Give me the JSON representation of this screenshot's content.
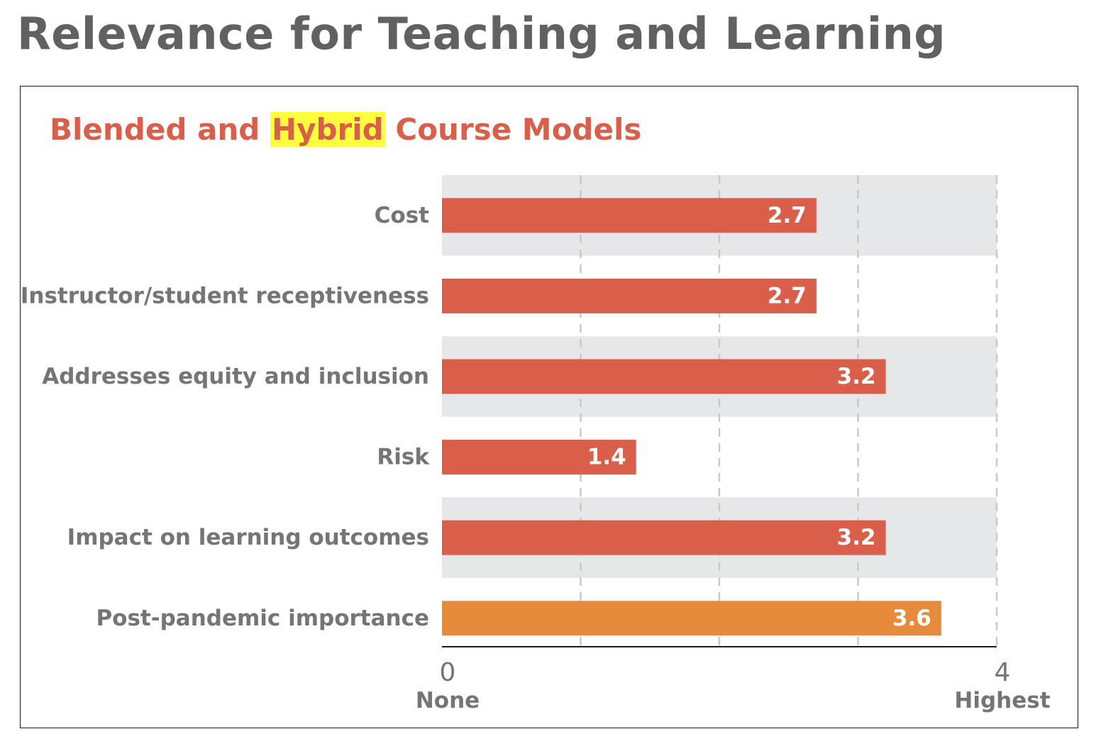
{
  "page": {
    "title": "Relevance for Teaching and Learning"
  },
  "chart_data": {
    "type": "bar",
    "orientation": "horizontal",
    "title_parts": {
      "before": "Blended and ",
      "highlight": "Hybrid",
      "after": " Course Models"
    },
    "categories": [
      "Cost",
      "Instructor/student receptiveness",
      "Addresses equity and inclusion",
      "Risk",
      "Impact on learning outcomes",
      "Post-pandemic importance"
    ],
    "values": [
      2.7,
      2.7,
      3.2,
      1.4,
      3.2,
      3.6
    ],
    "value_labels": [
      "2.7",
      "2.7",
      "3.2",
      "1.4",
      "3.2",
      "3.6"
    ],
    "xlim": [
      0,
      4
    ],
    "x_ticks": [
      {
        "value": 0,
        "label": "0",
        "sublabel": "None"
      },
      {
        "value": 4,
        "label": "4",
        "sublabel": "Highest"
      }
    ],
    "grid": true,
    "legend": "none",
    "colors": {
      "bar": "#d95f4b",
      "highlight_bar": "#e68b3c",
      "row_band": "#e6e7e8",
      "grid": "#c9c9c9",
      "axis": "#1a1a1a",
      "title": "#d95f4b",
      "title_highlight": "#ffff3d"
    },
    "highlight_index": 5
  }
}
